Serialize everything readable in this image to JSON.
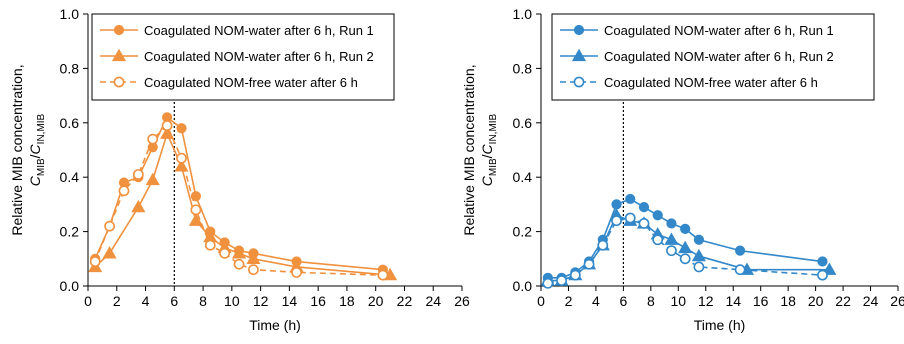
{
  "chart_data": [
    {
      "type": "line",
      "panel": "left",
      "color": "#F0913E",
      "xlabel": "Time (h)",
      "ylabel_line1": "Relative MIB concentration,",
      "ylabel_line2_parts": [
        "C",
        "MIB",
        "/C",
        "IN,MIB"
      ],
      "xlim": [
        0,
        26
      ],
      "ylim": [
        0,
        1.0
      ],
      "xticks": [
        "0",
        "2",
        "4",
        "6",
        "8",
        "10",
        "12",
        "14",
        "16",
        "18",
        "20",
        "22",
        "24",
        "26"
      ],
      "yticks": [
        "0.0",
        "0.2",
        "0.4",
        "0.6",
        "0.8",
        "1.0"
      ],
      "vline_x": 6,
      "legend_position": "top-right",
      "series": [
        {
          "name": "Coagulated NOM-water after 6 h, Run 1",
          "marker": "circle-filled",
          "line": "solid",
          "x": [
            0.5,
            1.5,
            2.5,
            3.5,
            4.5,
            5.5,
            6.5,
            7.5,
            8.5,
            9.5,
            10.5,
            11.5,
            14.5,
            20.5
          ],
          "y": [
            0.1,
            0.22,
            0.38,
            0.4,
            0.51,
            0.62,
            0.58,
            0.33,
            0.2,
            0.16,
            0.13,
            0.12,
            0.09,
            0.06
          ]
        },
        {
          "name": "Coagulated NOM-water after 6 h, Run 2",
          "marker": "triangle-filled",
          "line": "solid",
          "x": [
            0.5,
            1.5,
            3.5,
            4.5,
            5.5,
            6.5,
            7.5,
            8.5,
            9.5,
            10.5,
            11.5,
            14.5,
            21
          ],
          "y": [
            0.07,
            0.12,
            0.29,
            0.39,
            0.56,
            0.44,
            0.24,
            0.18,
            0.14,
            0.12,
            0.1,
            0.07,
            0.04
          ]
        },
        {
          "name": "Coagulated NOM-free water after 6 h",
          "marker": "circle-open",
          "line": "dashed",
          "x": [
            0.5,
            1.5,
            2.5,
            3.5,
            4.5,
            5.5,
            6.5,
            7.5,
            8.5,
            9.5,
            10.5,
            11.5,
            14.5,
            20.5
          ],
          "y": [
            0.09,
            0.22,
            0.35,
            0.41,
            0.54,
            0.59,
            0.47,
            0.28,
            0.15,
            0.12,
            0.08,
            0.06,
            0.05,
            0.04
          ]
        }
      ]
    },
    {
      "type": "line",
      "panel": "right",
      "color": "#3388C9",
      "xlabel": "Time (h)",
      "ylabel_line1": "Relative MIB concentration,",
      "ylabel_line2_parts": [
        "C",
        "MIB",
        "/C",
        "IN,MIB"
      ],
      "xlim": [
        0,
        26
      ],
      "ylim": [
        0,
        1.0
      ],
      "xticks": [
        "0",
        "2",
        "4",
        "6",
        "8",
        "10",
        "12",
        "14",
        "16",
        "18",
        "20",
        "22",
        "24",
        "26"
      ],
      "yticks": [
        "0.0",
        "0.2",
        "0.4",
        "0.6",
        "0.8",
        "1.0"
      ],
      "vline_x": 6,
      "legend_position": "top-right",
      "series": [
        {
          "name": "Coagulated NOM-water after 6 h, Run 1",
          "marker": "circle-filled",
          "line": "solid",
          "x": [
            0.5,
            1.5,
            2.5,
            3.5,
            4.5,
            5.5,
            6.5,
            7.5,
            8.5,
            9.5,
            10.5,
            11.5,
            14.5,
            20.5
          ],
          "y": [
            0.03,
            0.03,
            0.05,
            0.09,
            0.17,
            0.3,
            0.32,
            0.29,
            0.26,
            0.23,
            0.21,
            0.17,
            0.13,
            0.09
          ]
        },
        {
          "name": "Coagulated NOM-water after 6 h, Run 2",
          "marker": "triangle-filled",
          "line": "solid",
          "x": [
            0.5,
            1.5,
            2.5,
            3.5,
            4.5,
            5.5,
            6.5,
            7.5,
            8.5,
            9.5,
            10.5,
            11.5,
            15,
            21
          ],
          "y": [
            0.02,
            0.02,
            0.04,
            0.08,
            0.15,
            0.26,
            0.24,
            0.23,
            0.19,
            0.17,
            0.14,
            0.11,
            0.06,
            0.06
          ]
        },
        {
          "name": "Coagulated NOM-free water after 6 h",
          "marker": "circle-open",
          "line": "dashed",
          "x": [
            0.5,
            1.5,
            2.5,
            3.5,
            4.5,
            5.5,
            6.5,
            7.5,
            8.5,
            9.5,
            10.5,
            11.5,
            14.5,
            20.5
          ],
          "y": [
            0.01,
            0.02,
            0.04,
            0.08,
            0.15,
            0.24,
            0.25,
            0.23,
            0.17,
            0.13,
            0.1,
            0.07,
            0.06,
            0.04
          ]
        }
      ]
    }
  ]
}
